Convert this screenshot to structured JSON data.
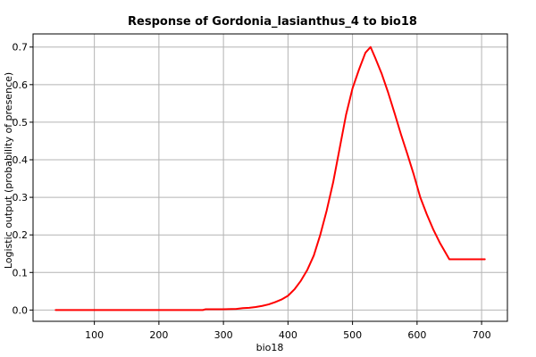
{
  "chart_data": {
    "type": "line",
    "title": "Response of Gordonia_lasianthus_4 to bio18",
    "xlabel": "bio18",
    "ylabel": "Logistic output (probability of presence)",
    "xlim": [
      5,
      740
    ],
    "ylim": [
      -0.03,
      0.735
    ],
    "xticks": [
      100,
      200,
      300,
      400,
      500,
      600,
      700
    ],
    "yticks": [
      0.0,
      0.1,
      0.2,
      0.3,
      0.4,
      0.5,
      0.6,
      0.7
    ],
    "ytick_labels": [
      "0.0",
      "0.1",
      "0.2",
      "0.3",
      "0.4",
      "0.5",
      "0.6",
      "0.7"
    ],
    "grid": true,
    "series": [
      {
        "color": "#ff0000",
        "x": [
          40,
          100,
          150,
          200,
          250,
          268,
          272,
          300,
          320,
          330,
          340,
          350,
          360,
          370,
          380,
          390,
          400,
          410,
          420,
          430,
          440,
          450,
          460,
          470,
          480,
          490,
          500,
          510,
          520,
          528,
          535,
          545,
          555,
          565,
          575,
          585,
          595,
          605,
          615,
          625,
          635,
          650,
          660,
          680,
          705
        ],
        "y": [
          0.0,
          0.0,
          0.0,
          0.0,
          0.0,
          0.0,
          0.002,
          0.002,
          0.003,
          0.005,
          0.006,
          0.008,
          0.011,
          0.015,
          0.021,
          0.028,
          0.038,
          0.055,
          0.078,
          0.107,
          0.145,
          0.2,
          0.265,
          0.34,
          0.43,
          0.52,
          0.59,
          0.64,
          0.685,
          0.7,
          0.672,
          0.63,
          0.58,
          0.525,
          0.468,
          0.415,
          0.36,
          0.3,
          0.255,
          0.215,
          0.18,
          0.135,
          0.135,
          0.135,
          0.135
        ]
      }
    ]
  }
}
